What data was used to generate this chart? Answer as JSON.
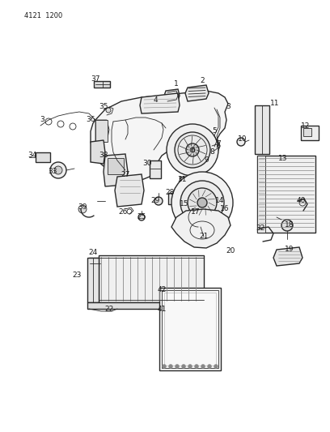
{
  "title_code": "4121 1200",
  "bg_color": "#ffffff",
  "line_color": "#2a2a2a",
  "text_color": "#1a1a1a",
  "fig_width": 4.08,
  "fig_height": 5.33,
  "dpi": 100
}
